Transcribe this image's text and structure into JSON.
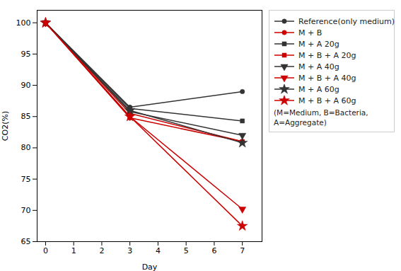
{
  "chart_data": {
    "type": "line",
    "xlabel": "Day",
    "ylabel": "CO2(%)",
    "x": [
      0,
      3,
      7
    ],
    "series": [
      {
        "name": "Reference(only medium)",
        "color": "#333333",
        "marker": "circle",
        "line_style": "solid",
        "values": [
          100,
          86.5,
          89
        ]
      },
      {
        "name": "M + B",
        "color": "#cc0000",
        "marker": "circle",
        "line_style": "solid",
        "values": [
          100,
          84.8,
          81.0
        ]
      },
      {
        "name": "M + A 20g",
        "color": "#333333",
        "marker": "square",
        "line_style": "solid",
        "values": [
          100,
          86.3,
          84.3
        ]
      },
      {
        "name": "M + B + A 20g",
        "color": "#cc0000",
        "marker": "square",
        "line_style": "solid",
        "values": [
          100,
          85.5,
          81.0
        ]
      },
      {
        "name": "M + A 40g",
        "color": "#333333",
        "marker": "triangle-down",
        "line_style": "solid",
        "values": [
          100,
          85.8,
          82.0
        ]
      },
      {
        "name": "M + B + A 40g",
        "color": "#cc0000",
        "marker": "triangle-down",
        "line_style": "solid",
        "values": [
          100,
          85.0,
          70.2
        ]
      },
      {
        "name": "M + A 60g",
        "color": "#333333",
        "marker": "star",
        "line_style": "solid",
        "values": [
          100,
          86.0,
          80.8
        ]
      },
      {
        "name": "M + B + A 60g",
        "color": "#cc0000",
        "marker": "star",
        "line_style": "solid",
        "values": [
          100,
          85.0,
          67.5
        ]
      }
    ],
    "xlim": [
      -0.3,
      7.7
    ],
    "xticks": [
      0,
      1,
      2,
      3,
      4,
      5,
      6,
      7
    ],
    "ylim": [
      65,
      102
    ],
    "yticks": [
      65,
      70,
      75,
      80,
      85,
      90,
      95,
      100
    ],
    "grid": false,
    "legend": "upper right",
    "annotations": [
      "(M=Medium, B=Bacteria, A=Aggregate)"
    ]
  }
}
